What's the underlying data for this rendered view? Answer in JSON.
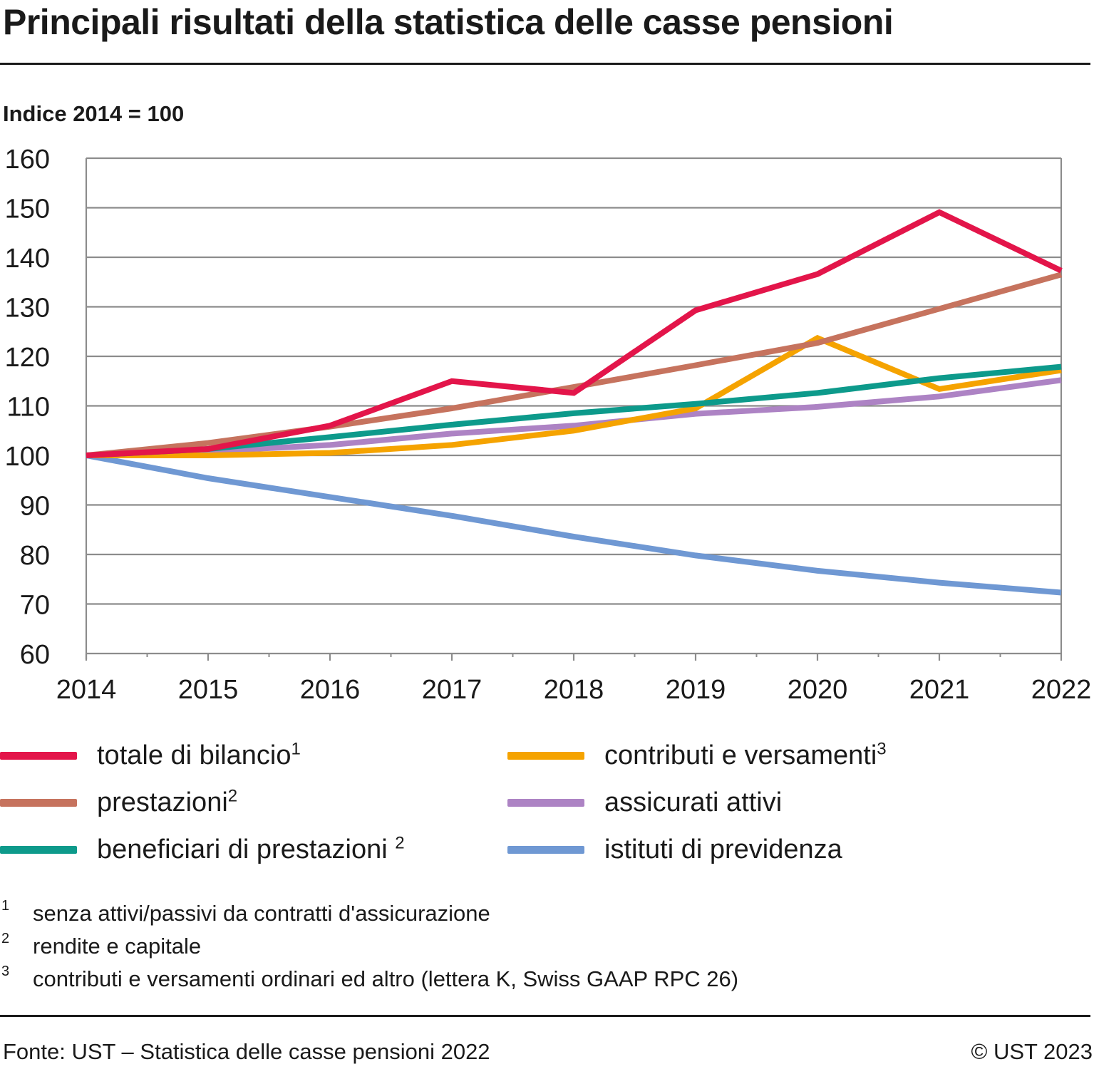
{
  "title": "Principali risultati della statistica delle casse pensioni",
  "unit_label": "Indice 2014 = 100",
  "chart_data": {
    "type": "line",
    "x": [
      "2014",
      "2015",
      "2016",
      "2017",
      "2018",
      "2019",
      "2020",
      "2021",
      "2022"
    ],
    "ylim": [
      60,
      160
    ],
    "yticks": [
      60,
      70,
      80,
      90,
      100,
      110,
      120,
      130,
      140,
      150,
      160
    ],
    "grid": true,
    "legend_position": "bottom",
    "series": [
      {
        "name": "istituti di previdenza",
        "sup": "",
        "color": "#6f98d3",
        "values": [
          100,
          95.4,
          91.6,
          87.8,
          83.6,
          79.8,
          76.7,
          74.3,
          72.3
        ]
      },
      {
        "name": "assicurati attivi",
        "sup": "",
        "color": "#ad83c4",
        "values": [
          100,
          100.8,
          102.1,
          104.4,
          106.0,
          108.4,
          109.8,
          111.9,
          115.2
        ]
      },
      {
        "name": "contributi e versamenti",
        "sup": "3",
        "color": "#f5a300",
        "values": [
          100,
          100.0,
          100.5,
          102.1,
          105.0,
          109.5,
          123.7,
          113.4,
          117.2
        ]
      },
      {
        "name": "beneficiari di prestazioni",
        "sup": "2",
        "color": "#0d9a8b",
        "values": [
          100,
          101.3,
          103.7,
          106.2,
          108.5,
          110.4,
          112.6,
          115.6,
          117.9
        ]
      },
      {
        "name": "prestazioni",
        "sup": "2",
        "color": "#c6735e",
        "values": [
          100,
          102.5,
          105.8,
          109.5,
          113.8,
          118.2,
          122.7,
          129.6,
          136.5
        ]
      },
      {
        "name": "totale di bilancio",
        "sup": "1",
        "color": "#e3154a",
        "values": [
          100,
          101.3,
          106.0,
          115.0,
          112.6,
          129.3,
          136.6,
          149.1,
          137.3
        ]
      }
    ]
  },
  "legend": {
    "left": [
      {
        "label": "totale di bilancio",
        "sup": "1",
        "color": "#e3154a"
      },
      {
        "label": "prestazioni",
        "sup": "2",
        "color": "#c6735e"
      },
      {
        "label": "beneficiari di prestazioni",
        "sup": "2",
        "color": "#0d9a8b"
      }
    ],
    "right": [
      {
        "label": "contributi e versamenti",
        "sup": "3",
        "color": "#f5a300"
      },
      {
        "label": "assicurati attivi",
        "sup": "",
        "color": "#ad83c4"
      },
      {
        "label": "istituti di previdenza",
        "sup": "",
        "color": "#6f98d3"
      }
    ]
  },
  "footnotes": [
    {
      "mark": "1",
      "text": "senza attivi/passivi da contratti d'assicurazione"
    },
    {
      "mark": "2",
      "text": "rendite e capitale"
    },
    {
      "mark": "3",
      "text": "contributi e versamenti ordinari ed altro (lettera K, Swiss GAAP RPC 26)"
    }
  ],
  "source": "Fonte: UST – Statistica delle casse pensioni 2022",
  "copyright": "© UST 2023"
}
